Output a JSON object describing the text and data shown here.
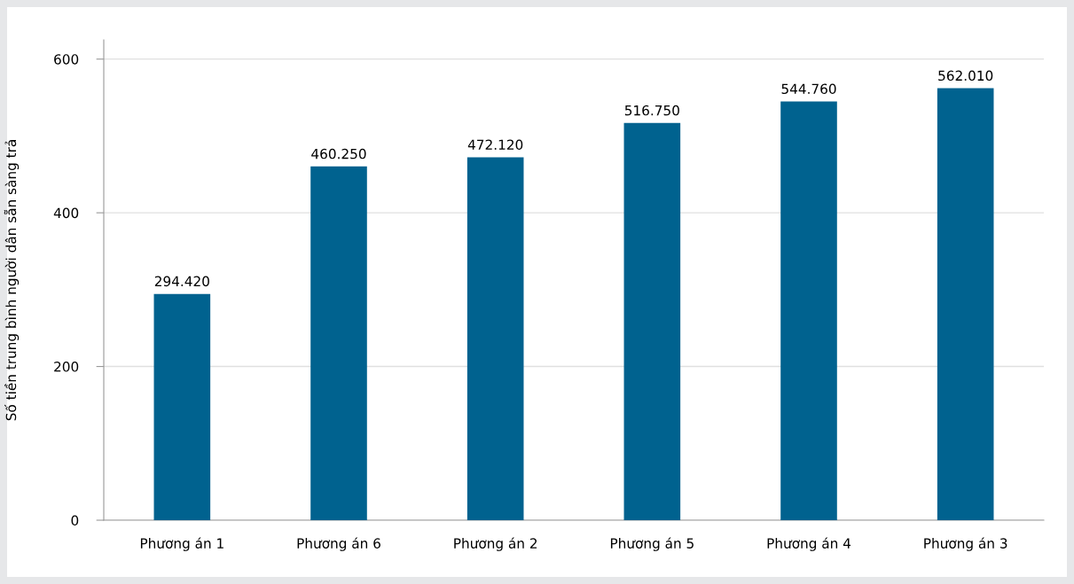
{
  "chart_data": {
    "type": "bar",
    "ylabel": "Số tiền trung bình người dân sẵn sàng trả",
    "categories": [
      "Phương án 1",
      "Phương án 6",
      "Phương án 2",
      "Phương án 5",
      "Phương án 4",
      "Phương án 3"
    ],
    "values": [
      294.42,
      460.25,
      472.12,
      516.75,
      544.76,
      562.01
    ],
    "value_labels": [
      "294.420",
      "460.250",
      "472.120",
      "516.750",
      "544.760",
      "562.010"
    ],
    "color": "#00628f",
    "ylim": [
      0,
      625
    ],
    "yticks": [
      0,
      200,
      400,
      600
    ],
    "grid": "y",
    "legend": false
  }
}
